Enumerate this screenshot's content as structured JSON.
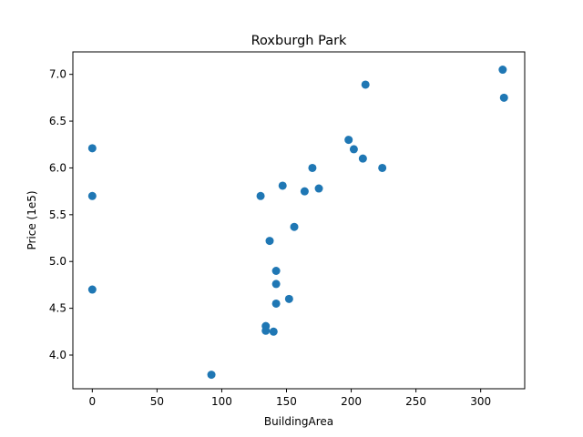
{
  "chart_data": {
    "type": "scatter",
    "title": "Roxburgh Park",
    "xlabel": "BuildingArea",
    "ylabel": "Price (1e5)",
    "xlim": [
      -15,
      334
    ],
    "ylim": [
      3.64,
      7.24
    ],
    "xticks": [
      0,
      50,
      100,
      150,
      200,
      250,
      300
    ],
    "xtick_labels": [
      "0",
      "50",
      "100",
      "150",
      "200",
      "250",
      "300"
    ],
    "yticks": [
      4.0,
      4.5,
      5.0,
      5.5,
      6.0,
      6.5,
      7.0
    ],
    "ytick_labels": [
      "4.0",
      "4.5",
      "5.0",
      "5.5",
      "6.0",
      "6.5",
      "7.0"
    ],
    "grid": false,
    "color": "#1f77b4",
    "points": [
      {
        "x": 0,
        "y": 6.21
      },
      {
        "x": 0,
        "y": 5.7
      },
      {
        "x": 0,
        "y": 4.7
      },
      {
        "x": 92,
        "y": 3.79
      },
      {
        "x": 130,
        "y": 5.7
      },
      {
        "x": 134,
        "y": 4.31
      },
      {
        "x": 134,
        "y": 4.26
      },
      {
        "x": 137,
        "y": 5.22
      },
      {
        "x": 140,
        "y": 4.25
      },
      {
        "x": 142,
        "y": 4.9
      },
      {
        "x": 142,
        "y": 4.76
      },
      {
        "x": 142,
        "y": 4.55
      },
      {
        "x": 147,
        "y": 5.81
      },
      {
        "x": 152,
        "y": 4.6
      },
      {
        "x": 156,
        "y": 5.37
      },
      {
        "x": 164,
        "y": 5.75
      },
      {
        "x": 170,
        "y": 6.0
      },
      {
        "x": 175,
        "y": 5.78
      },
      {
        "x": 198,
        "y": 6.3
      },
      {
        "x": 202,
        "y": 6.2
      },
      {
        "x": 209,
        "y": 6.1
      },
      {
        "x": 211,
        "y": 6.89
      },
      {
        "x": 224,
        "y": 6.0
      },
      {
        "x": 317,
        "y": 7.05
      },
      {
        "x": 318,
        "y": 6.75
      }
    ]
  }
}
